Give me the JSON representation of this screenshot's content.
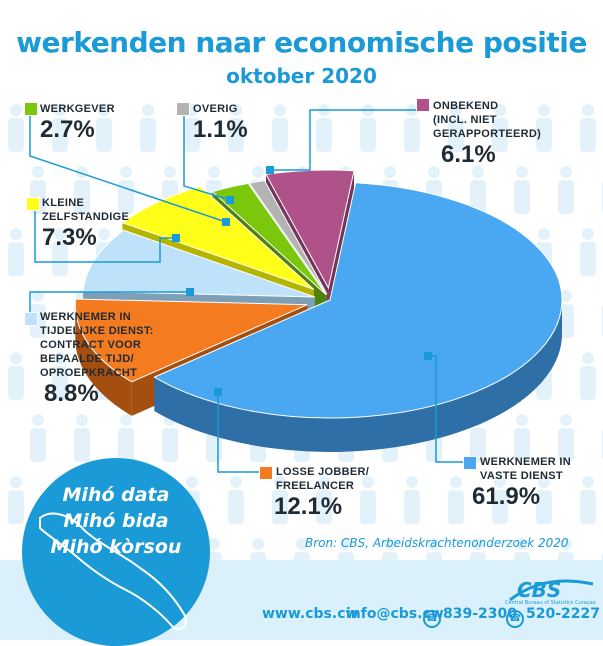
{
  "header": {
    "title": "werkenden naar economische positie",
    "subtitle": "oktober 2020"
  },
  "chart_data": {
    "type": "pie",
    "title": "werkenden naar economische positie",
    "subtitle": "oktober 2020",
    "slices": [
      {
        "key": "vaste",
        "name": "WERKNEMER IN\nVASTE DIENST",
        "value": 61.9,
        "label": "61.9%",
        "color": "#4aa8f2",
        "dark": "#2e6fa8",
        "explode": 0
      },
      {
        "key": "losse",
        "name": "LOSSE JOBBER/\nFREELANCER",
        "value": 12.1,
        "label": "12.1%",
        "color": "#f47b20",
        "dark": "#a44f10",
        "explode": 24
      },
      {
        "key": "tijdelijk",
        "name": "WERKNEMER IN\nTIJDELIJKE DIENST:\nCONTRACT VOOR\nBEPAALDE TIJD/\nOPROEPKRACHT",
        "value": 8.8,
        "label": "8.8%",
        "color": "#bfe2fb",
        "dark": "#7d9fb8",
        "explode": 16
      },
      {
        "key": "zelfstandige",
        "name": "KLEINE\nZELFSTANDIGE",
        "value": 7.3,
        "label": "7.3%",
        "color": "#ffff1a",
        "dark": "#b5b500",
        "explode": 24
      },
      {
        "key": "werkgever",
        "name": "WERKGEVER",
        "value": 2.7,
        "label": "2.7%",
        "color": "#7ac70c",
        "dark": "#4e820a",
        "explode": 10
      },
      {
        "key": "overig",
        "name": "OVERIG",
        "value": 1.1,
        "label": "1.1%",
        "color": "#b3b3b3",
        "dark": "#7a7a7a",
        "explode": 10
      },
      {
        "key": "onbekend",
        "name": "ONBEKEND\n(INCL. NIET\nGERAPPORTEERD)",
        "value": 6.1,
        "label": "6.1%",
        "color": "#b0528a",
        "dark": "#733559",
        "explode": 20
      }
    ]
  },
  "source": "Bron: CBS, Arbeidskrachtenonderzoek 2020",
  "slogan": [
    "Mihó data",
    "Mihó bida",
    "Mihó kòrsou"
  ],
  "footer": {
    "website": "www.cbs.cw",
    "email": "info@cbs.cw",
    "phone1": "839-2300",
    "phone2": "520-2227"
  },
  "logo": {
    "name": "CBS",
    "tagline": "Central Bureau of Statistics Curaçao"
  },
  "colors": {
    "brand": "#1a9ad6",
    "background_figures": "#e3f1fa"
  }
}
